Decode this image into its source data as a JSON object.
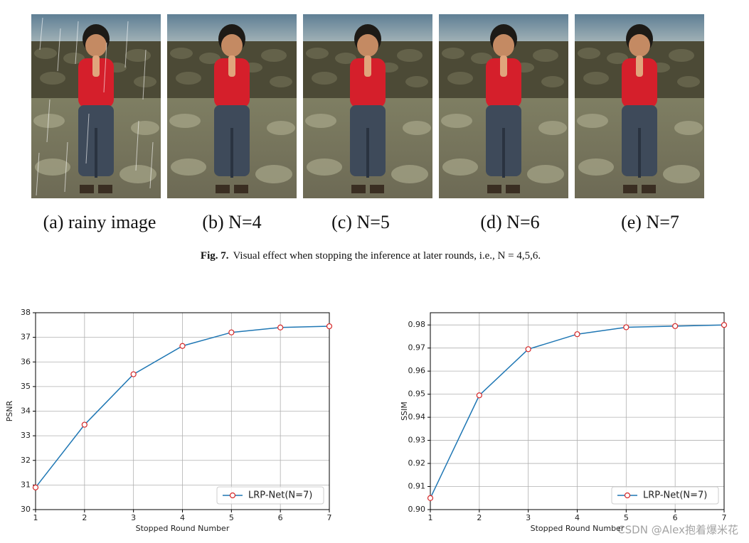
{
  "figure": {
    "panels": [
      "(a) rainy image",
      "(b) N=4",
      "(c) N=5",
      "(d) N=6",
      "(e) N=7"
    ],
    "caption": {
      "label": "Fig. 7.",
      "text": "Visual effect when stopping the inference at later rounds, i.e., N = 4,5,6."
    }
  },
  "chart_data": [
    {
      "type": "line",
      "xlabel": "Stopped Round Number",
      "ylabel": "PSNR",
      "x": [
        1,
        2,
        3,
        4,
        5,
        6,
        7
      ],
      "series": [
        {
          "name": "LRP-Net(N=7)",
          "color": "#1f77b4",
          "marker_color": "#d62728",
          "values": [
            30.9,
            33.45,
            35.5,
            36.65,
            37.2,
            37.4,
            37.45
          ]
        }
      ],
      "xlim": [
        1,
        7
      ],
      "xticks": [
        1,
        2,
        3,
        4,
        5,
        6,
        7
      ],
      "ylim": [
        30,
        38
      ],
      "yticks": [
        30,
        31,
        32,
        33,
        34,
        35,
        36,
        37,
        38
      ],
      "grid": true,
      "legend": "lower right"
    },
    {
      "type": "line",
      "xlabel": "Stopped Round Number",
      "ylabel": "SSIM",
      "x": [
        1,
        2,
        3,
        4,
        5,
        6,
        7
      ],
      "series": [
        {
          "name": "LRP-Net(N=7)",
          "color": "#1f77b4",
          "marker_color": "#d62728",
          "values": [
            0.905,
            0.9495,
            0.9695,
            0.976,
            0.979,
            0.9795,
            0.98
          ]
        }
      ],
      "xlim": [
        1,
        7
      ],
      "xticks": [
        1,
        2,
        3,
        4,
        5,
        6,
        7
      ],
      "ylim": [
        0.9,
        0.9853
      ],
      "yticks": [
        {
          "value": 0.9,
          "label": "0.90"
        },
        0.91,
        0.92,
        0.93,
        0.94,
        0.95,
        0.96,
        0.97,
        0.98
      ],
      "grid": true,
      "legend": "lower right"
    }
  ],
  "watermark": "CSDN @Alex抱着爆米花"
}
